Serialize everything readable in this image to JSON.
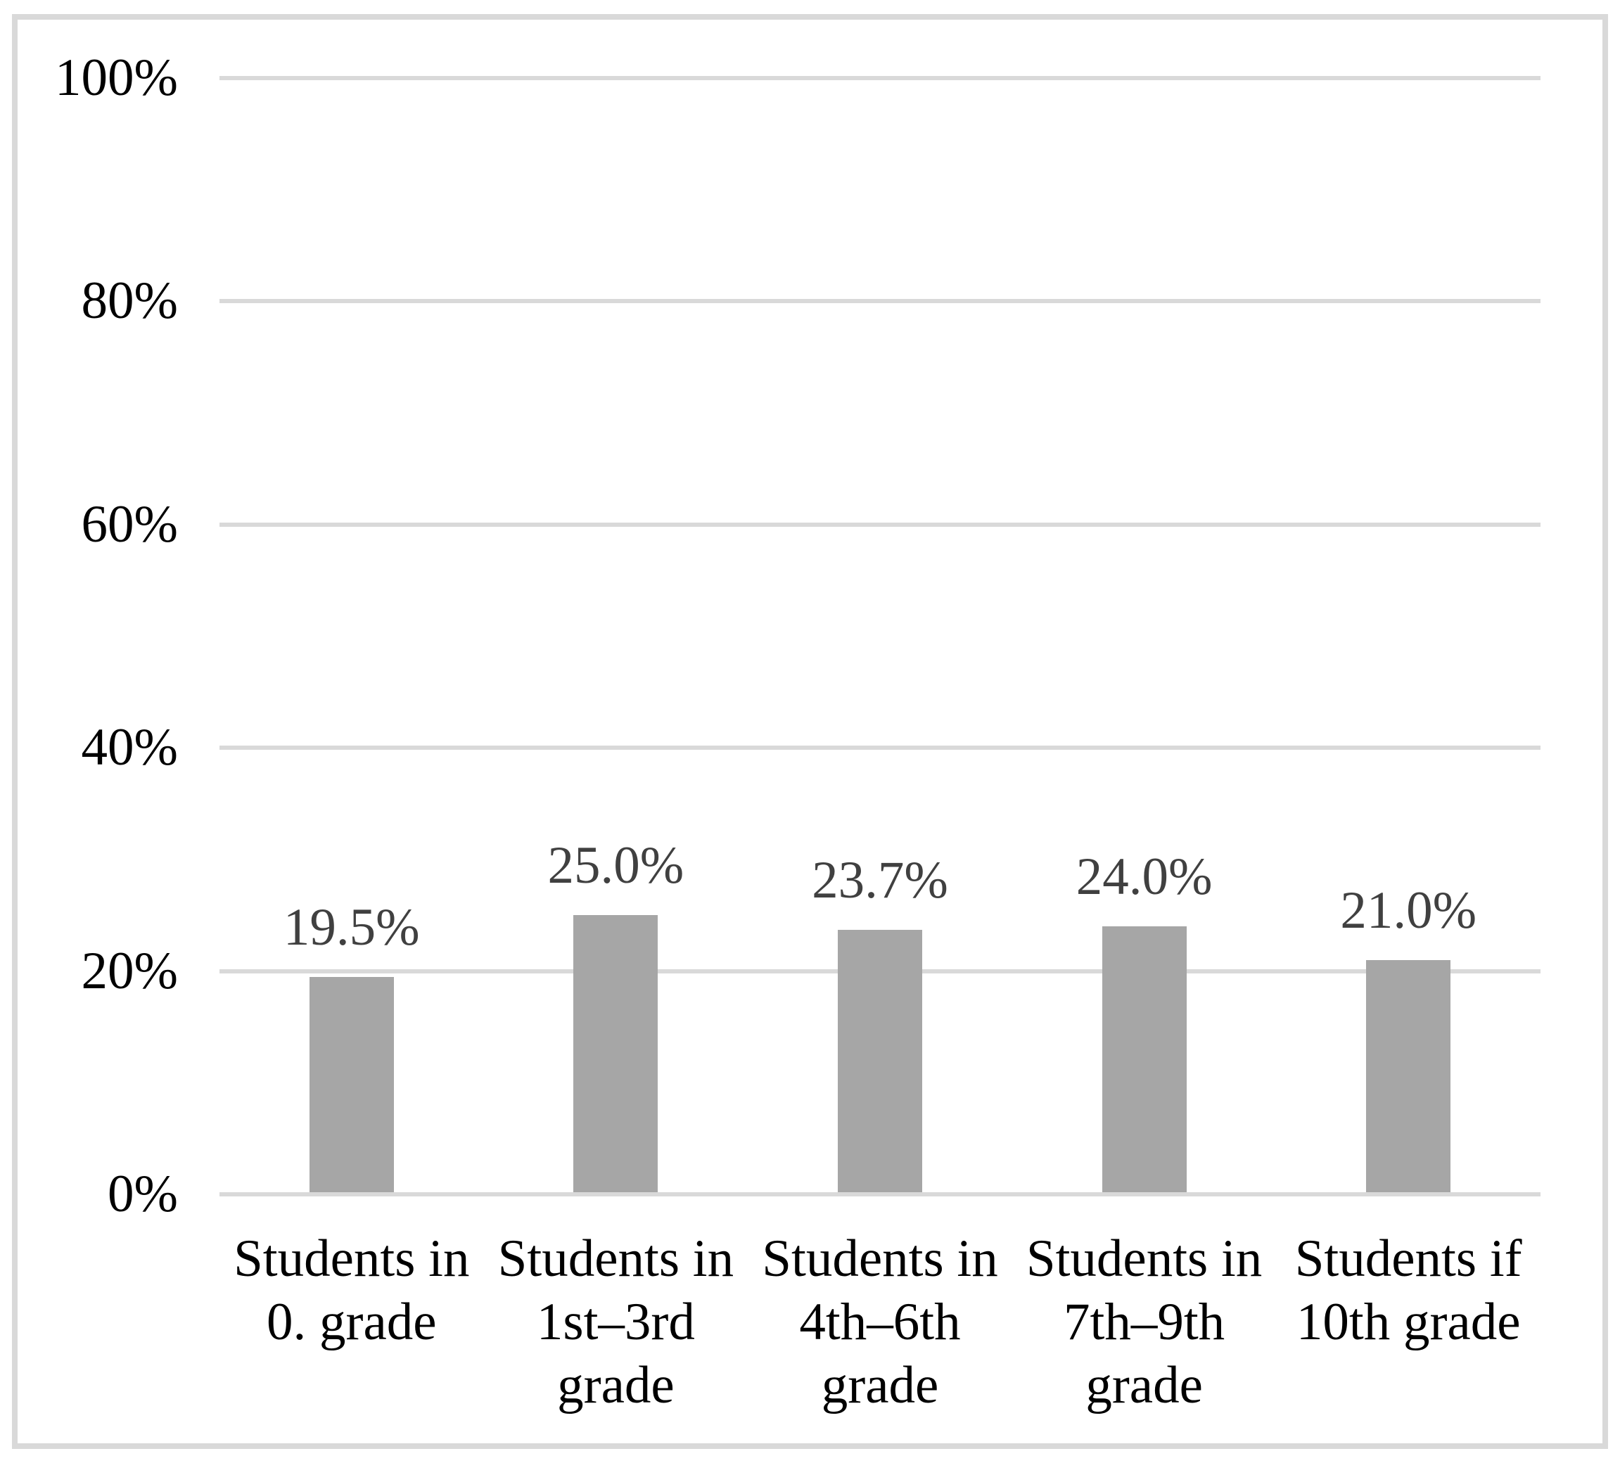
{
  "chart_data": {
    "type": "bar",
    "title": "",
    "xlabel": "",
    "ylabel": "",
    "categories": [
      "Students in\n0. grade",
      "Students in\n1st–3rd\ngrade",
      "Students in\n4th–6th\ngrade",
      "Students in\n7th–9th\ngrade",
      "Students if\n10th grade"
    ],
    "values": [
      19.5,
      25.0,
      23.7,
      24.0,
      21.0
    ],
    "data_labels": [
      "19.5%",
      "25.0%",
      "23.7%",
      "24.0%",
      "21.0%"
    ],
    "ylim": [
      0,
      100
    ],
    "yticks": [
      0,
      20,
      40,
      60,
      80,
      100
    ],
    "ytick_labels": [
      "0%",
      "20%",
      "40%",
      "60%",
      "80%",
      "100%"
    ],
    "grid": "horizontal-only",
    "legend": "none",
    "colors": {
      "bar_fill": "#a6a6a6",
      "gridline": "#d9d9d9",
      "frame_border": "#d9d9d9",
      "data_label": "#404040",
      "axis_tick_label": "#000000",
      "category_label": "#000000",
      "background": "#ffffff"
    }
  }
}
